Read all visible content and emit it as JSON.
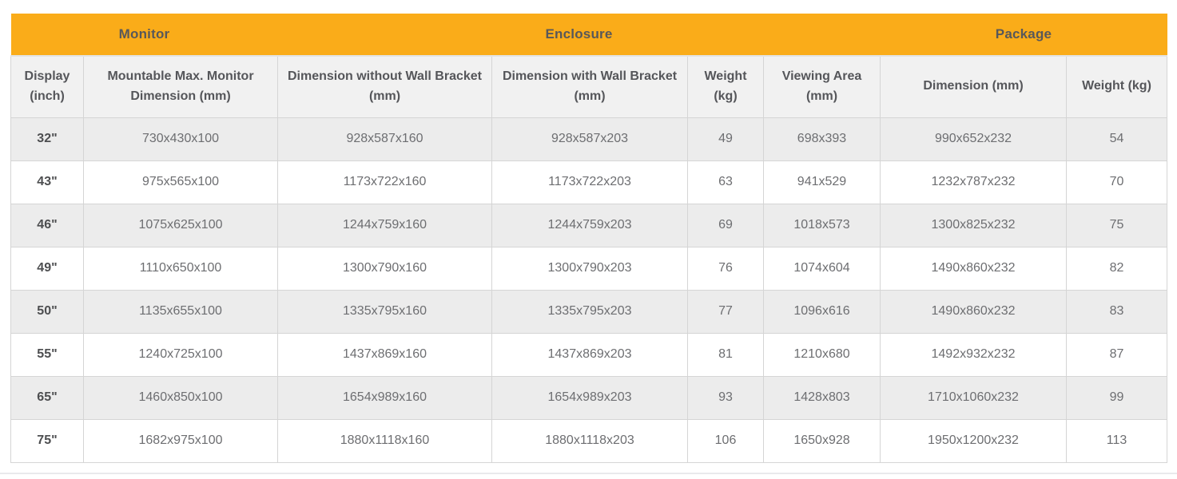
{
  "colors": {
    "group_band": "#FAAC19",
    "header_bg": "#F1F1F1",
    "stripe_bg": "#ECECEC",
    "border": "#D5D5D5",
    "header_text": "#55565A",
    "body_text": "#6D6E71"
  },
  "table": {
    "groups": [
      {
        "id": "monitor",
        "label": "Monitor",
        "colspan": 2
      },
      {
        "id": "enclosure",
        "label": "Enclosure",
        "colspan": 4
      },
      {
        "id": "package",
        "label": "Package",
        "colspan": 2
      }
    ],
    "columns": [
      "Display (inch)",
      "Mountable Max. Monitor Dimension (mm)",
      "Dimension without Wall Bracket (mm)",
      "Dimension with Wall Bracket (mm)",
      "Weight (kg)",
      "Viewing Area (mm)",
      "Dimension (mm)",
      "Weight (kg)"
    ],
    "rows": [
      [
        "32\"",
        "730x430x100",
        "928x587x160",
        "928x587x203",
        "49",
        "698x393",
        "990x652x232",
        "54"
      ],
      [
        "43\"",
        "975x565x100",
        "1173x722x160",
        "1173x722x203",
        "63",
        "941x529",
        "1232x787x232",
        "70"
      ],
      [
        "46\"",
        "1075x625x100",
        "1244x759x160",
        "1244x759x203",
        "69",
        "1018x573",
        "1300x825x232",
        "75"
      ],
      [
        "49\"",
        "1110x650x100",
        "1300x790x160",
        "1300x790x203",
        "76",
        "1074x604",
        "1490x860x232",
        "82"
      ],
      [
        "50\"",
        "1135x655x100",
        "1335x795x160",
        "1335x795x203",
        "77",
        "1096x616",
        "1490x860x232",
        "83"
      ],
      [
        "55\"",
        "1240x725x100",
        "1437x869x160",
        "1437x869x203",
        "81",
        "1210x680",
        "1492x932x232",
        "87"
      ],
      [
        "65\"",
        "1460x850x100",
        "1654x989x160",
        "1654x989x203",
        "93",
        "1428x803",
        "1710x1060x232",
        "99"
      ],
      [
        "75\"",
        "1682x975x100",
        "1880x1118x160",
        "1880x1118x203",
        "106",
        "1650x928",
        "1950x1200x232",
        "113"
      ]
    ]
  }
}
